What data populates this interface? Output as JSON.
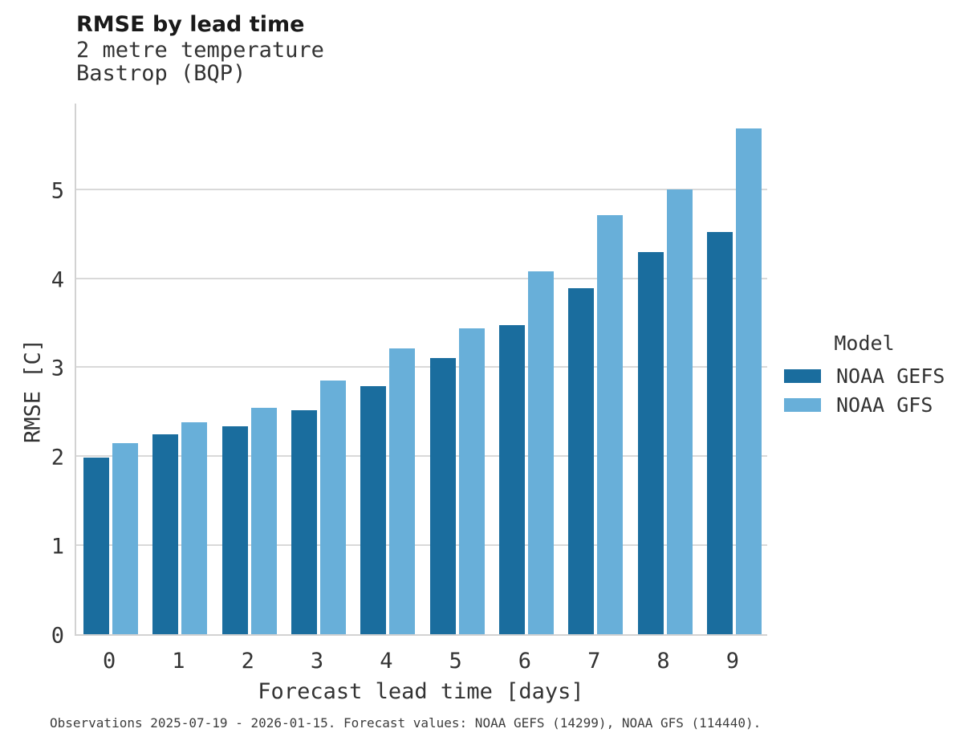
{
  "title": "RMSE by lead time",
  "subtitle_line1": "2 metre temperature",
  "subtitle_line2": "Bastrop (BQP)",
  "caption": "Observations 2025-07-19 - 2026-01-15. Forecast values: NOAA GEFS (14299), NOAA GFS (114440).",
  "legend": {
    "title": "Model",
    "items": [
      {
        "label": "NOAA GEFS",
        "color": "#1a6d9e"
      },
      {
        "label": "NOAA GFS",
        "color": "#68afd9"
      }
    ]
  },
  "colors": {
    "gefs_bar": "#1a6d9e",
    "gfs_bar": "#68afd9",
    "gridline": "#d9d9d9",
    "axis_line": "#d2d2d2"
  },
  "chart_data": {
    "type": "bar",
    "title": "RMSE by lead time",
    "subtitle": [
      "2 metre temperature",
      "Bastrop (BQP)"
    ],
    "categories": [
      "0",
      "1",
      "2",
      "3",
      "4",
      "5",
      "6",
      "7",
      "8",
      "9"
    ],
    "series": [
      {
        "name": "NOAA GEFS",
        "color": "#1a6d9e",
        "values": [
          1.98,
          2.25,
          2.34,
          2.52,
          2.79,
          3.1,
          3.47,
          3.89,
          4.29,
          4.52
        ]
      },
      {
        "name": "NOAA GFS",
        "color": "#68afd9",
        "values": [
          2.15,
          2.38,
          2.54,
          2.85,
          3.21,
          3.44,
          4.08,
          4.71,
          5.0,
          5.68
        ]
      }
    ],
    "xlabel": "Forecast lead time [days]",
    "ylabel": "RMSE [C]",
    "ylim": [
      0,
      5.98
    ],
    "yticks": [
      0,
      1,
      2,
      3,
      4,
      5
    ],
    "grid": true,
    "legend_position": "right",
    "legend_title": "Model"
  }
}
